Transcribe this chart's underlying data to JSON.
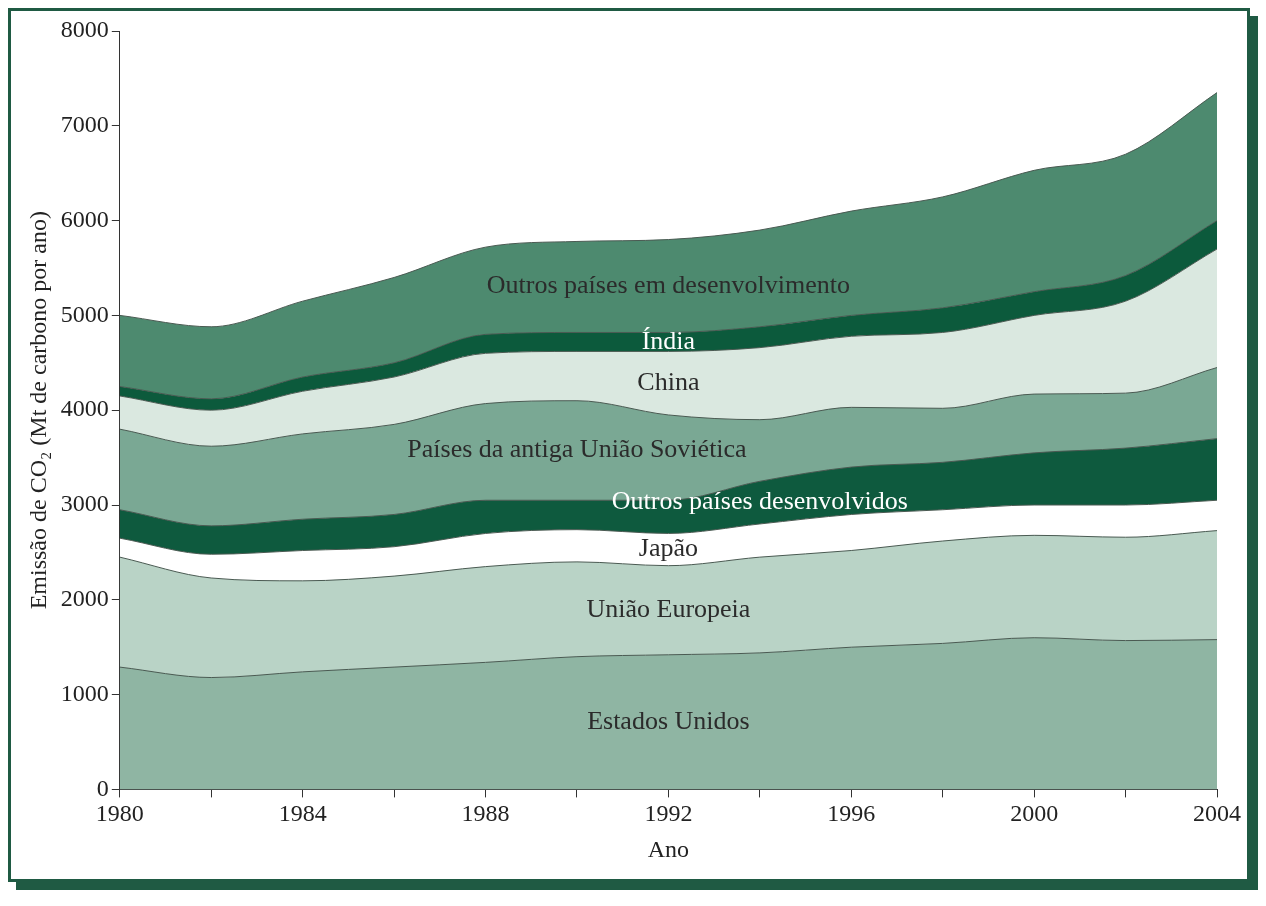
{
  "chart_data": {
    "type": "area",
    "stacked": true,
    "xlabel": "Ano",
    "ylabel": "Emissão de CO₂ (Mt de carbono por ano)",
    "x": [
      1980,
      1982,
      1984,
      1986,
      1988,
      1990,
      1992,
      1994,
      1996,
      1998,
      2000,
      2002,
      2004
    ],
    "xlim": [
      1980,
      2004
    ],
    "xticks": [
      1980,
      {
        "value": 1982,
        "label": null
      },
      1984,
      {
        "value": 1986,
        "label": null
      },
      1988,
      {
        "value": 1990,
        "label": null
      },
      1992,
      {
        "value": 1994,
        "label": null
      },
      1996,
      {
        "value": 1998,
        "label": null
      },
      2000,
      {
        "value": 2002,
        "label": null
      },
      2004
    ],
    "ylim": [
      0,
      8000
    ],
    "yticks": [
      0,
      1000,
      2000,
      3000,
      4000,
      5000,
      6000,
      7000,
      8000
    ],
    "grid": false,
    "legend": false,
    "series": [
      {
        "name": "Estados Unidos",
        "color": "#8fb5a3",
        "values": [
          1290,
          1180,
          1240,
          1290,
          1340,
          1400,
          1420,
          1440,
          1500,
          1540,
          1600,
          1570,
          1580
        ]
      },
      {
        "name": "União Europeia",
        "color": "#b9d3c6",
        "values": [
          1160,
          1050,
          960,
          960,
          1010,
          1000,
          940,
          1010,
          1020,
          1080,
          1080,
          1090,
          1150
        ]
      },
      {
        "name": "Japão",
        "color": "#ffffff",
        "values": [
          200,
          250,
          320,
          310,
          350,
          340,
          340,
          350,
          380,
          330,
          320,
          340,
          320
        ]
      },
      {
        "name": "Outros países desenvolvidos",
        "color": "#0e5a3e",
        "values": [
          300,
          300,
          330,
          340,
          350,
          310,
          350,
          450,
          500,
          500,
          550,
          600,
          650
        ]
      },
      {
        "name": "Países da antiga União Soviética",
        "color": "#7aa894",
        "values": [
          850,
          840,
          900,
          950,
          1020,
          1050,
          900,
          650,
          630,
          570,
          620,
          580,
          750
        ]
      },
      {
        "name": "China",
        "color": "#dae8e0",
        "values": [
          350,
          380,
          450,
          500,
          530,
          520,
          670,
          760,
          750,
          800,
          830,
          970,
          1250
        ]
      },
      {
        "name": "Índia",
        "color": "#0c5a3c",
        "values": [
          100,
          120,
          150,
          150,
          200,
          200,
          200,
          220,
          220,
          260,
          250,
          270,
          300
        ]
      },
      {
        "name": "Outros países em desenvolvimento",
        "color": "#4d8a6f",
        "values": [
          750,
          760,
          800,
          900,
          920,
          960,
          980,
          1020,
          1100,
          1170,
          1280,
          1280,
          1350
        ]
      }
    ]
  }
}
